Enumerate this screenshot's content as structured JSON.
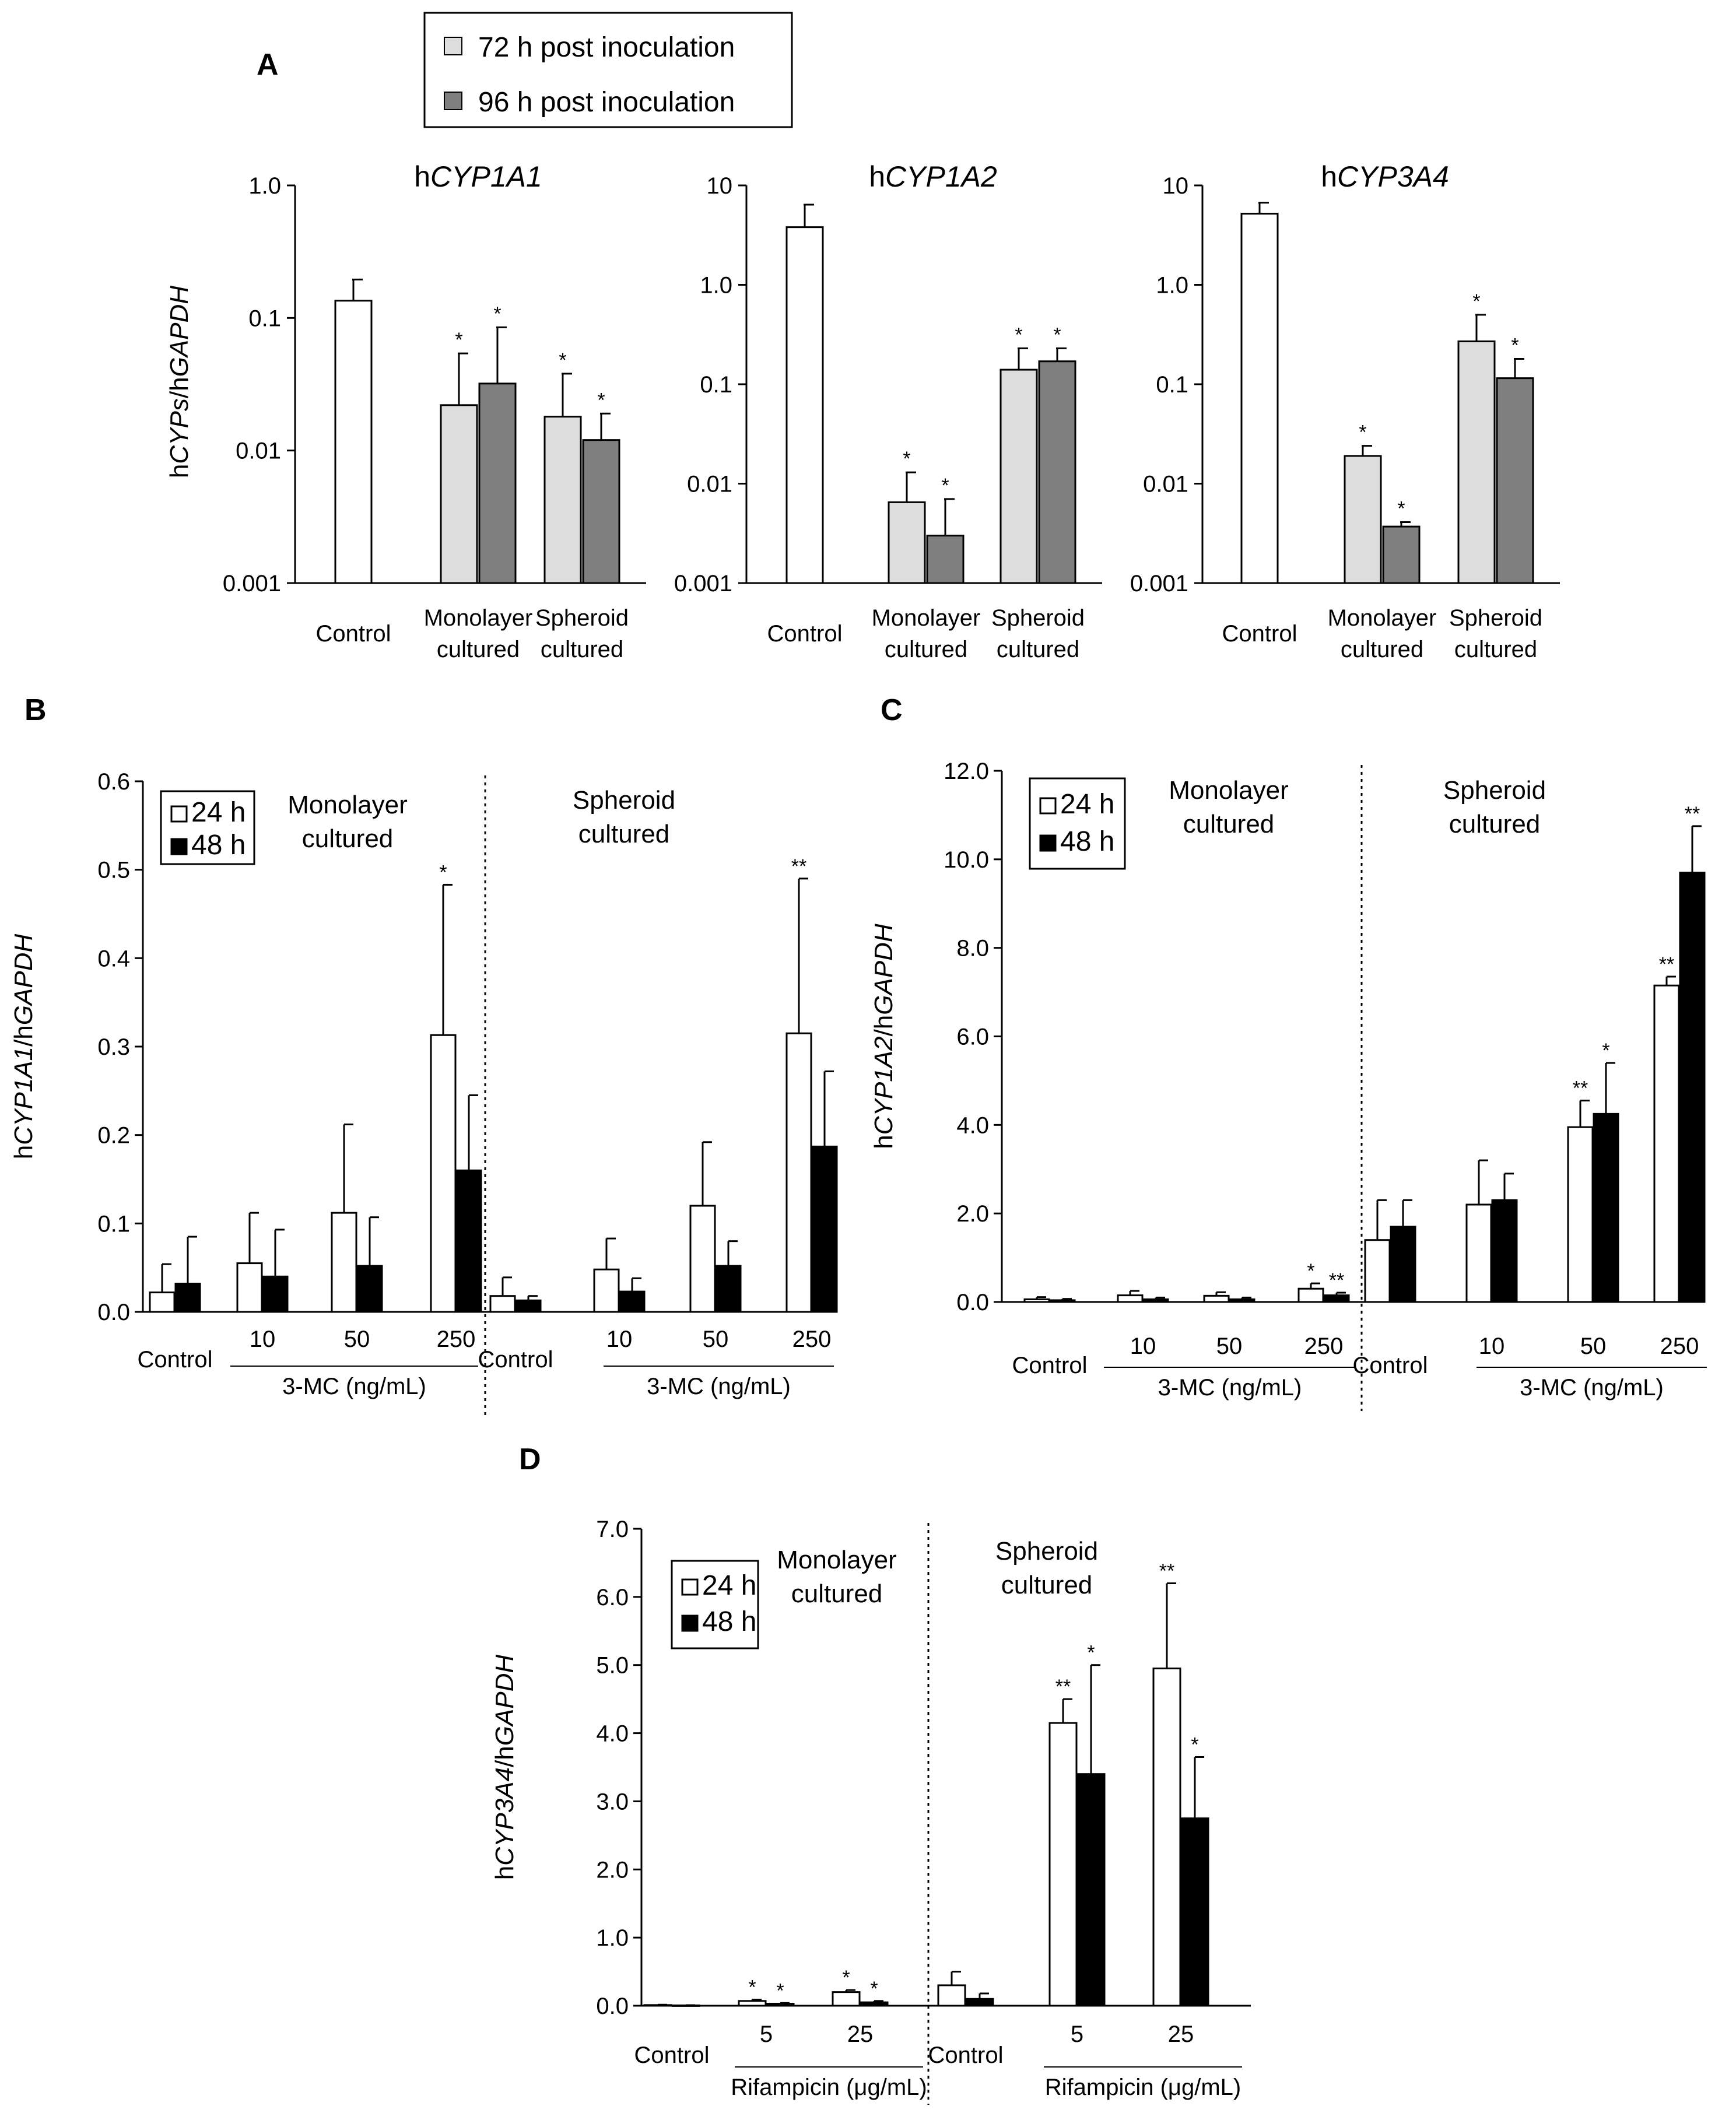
{
  "panel_labels": [
    "A",
    "B",
    "C",
    "D"
  ],
  "colors": {
    "t72": "#dddddd",
    "t96": "#7f7f7f",
    "t24": "#ffffff",
    "t48": "#000000"
  },
  "legend_A": {
    "items": [
      "72 h post inoculation",
      "96 h post inoculation"
    ]
  },
  "panel_A_common": {
    "ylabel": "hCYPs/hGAPDH",
    "categories": [
      "Control",
      "Monolayer\ncultured",
      "Spheroid\ncultured"
    ]
  },
  "chart_data": [
    {
      "id": "A1",
      "type": "bar",
      "title": "hCYP1A1",
      "yscale": "log",
      "ylim": [
        0.001,
        1.0
      ],
      "yticks": [
        {
          "v": 1.0,
          "label": "1.0"
        },
        {
          "v": 0.1,
          "label": "0.1"
        },
        {
          "v": 0.01,
          "label": "0.01"
        },
        {
          "v": 0.001,
          "label": "0.001"
        }
      ],
      "bars": [
        {
          "group": 0,
          "slot": "single",
          "series": "control",
          "value": 0.135,
          "err": 0.06
        },
        {
          "group": 1,
          "slot": "left",
          "series": "72 h",
          "value": 0.022,
          "err": 0.032,
          "sig": "*"
        },
        {
          "group": 1,
          "slot": "right",
          "series": "96 h",
          "value": 0.032,
          "err": 0.053,
          "sig": "*"
        },
        {
          "group": 2,
          "slot": "left",
          "series": "72 h",
          "value": 0.018,
          "err": 0.02,
          "sig": "*"
        },
        {
          "group": 2,
          "slot": "right",
          "series": "96 h",
          "value": 0.012,
          "err": 0.007,
          "sig": "*"
        }
      ]
    },
    {
      "id": "A2",
      "type": "bar",
      "title": "hCYP1A2",
      "yscale": "log",
      "ylim": [
        0.001,
        10
      ],
      "yticks": [
        {
          "v": 10,
          "label": "10"
        },
        {
          "v": 1.0,
          "label": "1.0"
        },
        {
          "v": 0.1,
          "label": "0.1"
        },
        {
          "v": 0.01,
          "label": "0.01"
        },
        {
          "v": 0.001,
          "label": "0.001"
        }
      ],
      "bars": [
        {
          "group": 0,
          "slot": "single",
          "series": "control",
          "value": 3.8,
          "err": 2.6
        },
        {
          "group": 1,
          "slot": "left",
          "series": "72 h",
          "value": 0.0065,
          "err": 0.0065,
          "sig": "*"
        },
        {
          "group": 1,
          "slot": "right",
          "series": "96 h",
          "value": 0.003,
          "err": 0.004,
          "sig": "*"
        },
        {
          "group": 2,
          "slot": "left",
          "series": "72 h",
          "value": 0.14,
          "err": 0.09,
          "sig": "*"
        },
        {
          "group": 2,
          "slot": "right",
          "series": "96 h",
          "value": 0.17,
          "err": 0.06,
          "sig": "*"
        }
      ]
    },
    {
      "id": "A3",
      "type": "bar",
      "title": "hCYP3A4",
      "yscale": "log",
      "ylim": [
        0.001,
        10
      ],
      "yticks": [
        {
          "v": 10,
          "label": "10"
        },
        {
          "v": 1.0,
          "label": "1.0"
        },
        {
          "v": 0.1,
          "label": "0.1"
        },
        {
          "v": 0.01,
          "label": "0.01"
        },
        {
          "v": 0.001,
          "label": "0.001"
        }
      ],
      "bars": [
        {
          "group": 0,
          "slot": "single",
          "series": "control",
          "value": 5.2,
          "err": 1.5
        },
        {
          "group": 1,
          "slot": "left",
          "series": "72 h",
          "value": 0.019,
          "err": 0.005,
          "sig": "*"
        },
        {
          "group": 1,
          "slot": "right",
          "series": "96 h",
          "value": 0.0037,
          "err": 0.0004,
          "sig": "*"
        },
        {
          "group": 2,
          "slot": "left",
          "series": "72 h",
          "value": 0.27,
          "err": 0.23,
          "sig": "*"
        },
        {
          "group": 2,
          "slot": "right",
          "series": "96 h",
          "value": 0.115,
          "err": 0.065,
          "sig": "*"
        }
      ]
    },
    {
      "id": "B",
      "type": "bar",
      "ylabel": "hCYP1A1/hGAPDH",
      "ylim": [
        0,
        0.6
      ],
      "yticks": [
        {
          "v": 0,
          "label": "0.0"
        },
        {
          "v": 0.1,
          "label": "0.1"
        },
        {
          "v": 0.2,
          "label": "0.2"
        },
        {
          "v": 0.3,
          "label": "0.3"
        },
        {
          "v": 0.4,
          "label": "0.4"
        },
        {
          "v": 0.5,
          "label": "0.5"
        },
        {
          "v": 0.6,
          "label": "0.6"
        }
      ],
      "legend": [
        "24 h",
        "48 h"
      ],
      "section_labels": [
        "Monolayer\ncultured",
        "Spheroid\ncultured"
      ],
      "x_groups": [
        "Control",
        "10",
        "50",
        "250",
        "Control",
        "10",
        "50",
        "250"
      ],
      "treatment_label": "3-MC  (ng/mL)",
      "series": [
        {
          "name": "24 h",
          "values": [
            0.022,
            0.055,
            0.112,
            0.313,
            0.018,
            0.048,
            0.12,
            0.315
          ],
          "err": [
            0.032,
            0.057,
            0.1,
            0.17,
            0.021,
            0.035,
            0.072,
            0.175
          ],
          "sig": [
            "",
            "",
            "",
            "*",
            "",
            "",
            "",
            "**"
          ]
        },
        {
          "name": "48 h",
          "values": [
            0.032,
            0.04,
            0.052,
            0.16,
            0.013,
            0.023,
            0.052,
            0.187
          ],
          "err": [
            0.053,
            0.053,
            0.055,
            0.085,
            0.005,
            0.015,
            0.028,
            0.085
          ],
          "sig": [
            "",
            "",
            "",
            "",
            "",
            "",
            "",
            ""
          ]
        }
      ]
    },
    {
      "id": "C",
      "type": "bar",
      "ylabel": "hCYP1A2/hGAPDH",
      "ylim": [
        0,
        12
      ],
      "yticks": [
        {
          "v": 0,
          "label": "0.0"
        },
        {
          "v": 2,
          "label": "2.0"
        },
        {
          "v": 4,
          "label": "4.0"
        },
        {
          "v": 6,
          "label": "6.0"
        },
        {
          "v": 8,
          "label": "8.0"
        },
        {
          "v": 10,
          "label": "10.0"
        },
        {
          "v": 12,
          "label": "12.0"
        }
      ],
      "legend": [
        "24 h",
        "48 h"
      ],
      "section_labels": [
        "Monolayer\ncultured",
        "Spheroid\ncultured"
      ],
      "x_groups": [
        "Control",
        "10",
        "50",
        "250",
        "Control",
        "10",
        "50",
        "250"
      ],
      "treatment_label": "3-MC  (ng/mL)",
      "series": [
        {
          "name": "24 h",
          "values": [
            0.06,
            0.15,
            0.14,
            0.3,
            1.4,
            2.2,
            3.95,
            7.15
          ],
          "err": [
            0.05,
            0.1,
            0.08,
            0.12,
            0.9,
            1.0,
            0.6,
            0.2
          ],
          "sig": [
            "",
            "",
            "",
            "*",
            "",
            "",
            "**",
            "**"
          ]
        },
        {
          "name": "48 h",
          "values": [
            0.04,
            0.06,
            0.06,
            0.15,
            1.7,
            2.3,
            4.25,
            9.7
          ],
          "err": [
            0.03,
            0.04,
            0.04,
            0.06,
            0.6,
            0.6,
            1.15,
            1.05
          ],
          "sig": [
            "",
            "",
            "",
            "**",
            "",
            "",
            "*",
            "**"
          ]
        }
      ]
    },
    {
      "id": "D",
      "type": "bar",
      "ylabel": "hCYP3A4/hGAPDH",
      "ylim": [
        0,
        7
      ],
      "yticks": [
        {
          "v": 0,
          "label": "0.0"
        },
        {
          "v": 1,
          "label": "1.0"
        },
        {
          "v": 2,
          "label": "2.0"
        },
        {
          "v": 3,
          "label": "3.0"
        },
        {
          "v": 4,
          "label": "4.0"
        },
        {
          "v": 5,
          "label": "5.0"
        },
        {
          "v": 6,
          "label": "6.0"
        },
        {
          "v": 7,
          "label": "7.0"
        }
      ],
      "legend": [
        "24 h",
        "48 h"
      ],
      "section_labels": [
        "Monolayer\ncultured",
        "Spheroid\ncultured"
      ],
      "x_groups": [
        "Control",
        "5",
        "25",
        "Control",
        "5",
        "25"
      ],
      "treatment_label": "Rifampicin  (μg/mL)",
      "series": [
        {
          "name": "24 h",
          "values": [
            0.01,
            0.07,
            0.2,
            0.3,
            4.15,
            4.95
          ],
          "err": [
            0.005,
            0.02,
            0.03,
            0.2,
            0.35,
            1.25
          ],
          "sig": [
            "",
            "*",
            "*",
            "",
            "**",
            "**"
          ]
        },
        {
          "name": "48 h",
          "values": [
            0.005,
            0.03,
            0.05,
            0.1,
            3.4,
            2.75
          ],
          "err": [
            0.003,
            0.01,
            0.02,
            0.08,
            1.6,
            0.9
          ],
          "sig": [
            "",
            "*",
            "*",
            "",
            "*",
            "*"
          ]
        }
      ]
    }
  ]
}
